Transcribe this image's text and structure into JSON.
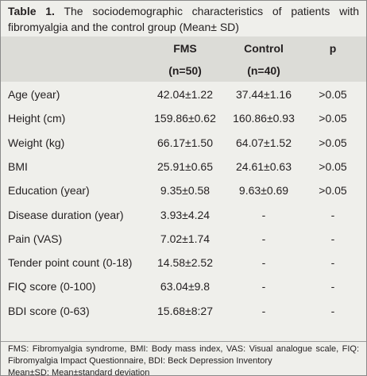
{
  "caption": {
    "label": "Table 1.",
    "text": "The sociodemographic characteristics of patients with fibromyalgia and the control group (Mean± SD)"
  },
  "table": {
    "columns": [
      {
        "name": "FMS",
        "n": "(n=50)"
      },
      {
        "name": "Control",
        "n": "(n=40)"
      },
      {
        "name": "p"
      }
    ],
    "rows": [
      [
        "Age (year)",
        "42.04±1.22",
        "37.44±1.16",
        ">0.05"
      ],
      [
        "Height (cm)",
        "159.86±0.62",
        "160.86±0.93",
        ">0.05"
      ],
      [
        "Weight (kg)",
        "66.17±1.50",
        "64.07±1.52",
        ">0.05"
      ],
      [
        "BMI",
        "25.91±0.65",
        "24.61±0.63",
        ">0.05"
      ],
      [
        "Education (year)",
        "9.35±0.58",
        "9.63±0.69",
        ">0.05"
      ],
      [
        "Disease duration (year)",
        "3.93±4.24",
        "-",
        "-"
      ],
      [
        "Pain (VAS)",
        "7.02±1.74",
        "-",
        "-"
      ],
      [
        "Tender point count (0-18)",
        "14.58±2.52",
        "-",
        "-"
      ],
      [
        "FIQ score (0-100)",
        "63.04±9.8",
        "-",
        "-"
      ],
      [
        "BDI score (0-63)",
        "15.68±8:27",
        "-",
        "-"
      ]
    ]
  },
  "footnotes": [
    "FMS: Fibromyalgia syndrome, BMI: Body mass index, VAS: Visual analogue scale, FIQ: Fibromyalgia Impact Questionnaire, BDI: Beck Depression Inventory",
    "Mean±SD: Mean±standard deviation"
  ]
}
